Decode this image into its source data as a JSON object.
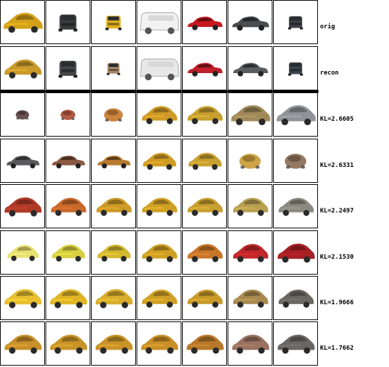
{
  "rows": [
    {
      "label": "orig",
      "cars": [
        {
          "color": "#d4a21a",
          "kind": "hatch-side",
          "scale": 1.0
        },
        {
          "color": "#3a3c40",
          "kind": "front",
          "scale": 0.7
        },
        {
          "color": "#e0b020",
          "kind": "front",
          "scale": 0.6
        },
        {
          "color": "#f2f2f2",
          "kind": "van-side",
          "scale": 1.0
        },
        {
          "color": "#c81820",
          "kind": "sedan-side",
          "scale": 0.9
        },
        {
          "color": "#4a4c50",
          "kind": "sedan-side",
          "scale": 0.95
        },
        {
          "color": "#3c4046",
          "kind": "front",
          "scale": 0.55
        }
      ]
    },
    {
      "label": "recon",
      "cars": [
        {
          "color": "#c99a2a",
          "kind": "hatch-side",
          "scale": 0.95
        },
        {
          "color": "#44464a",
          "kind": "front",
          "scale": 0.7
        },
        {
          "color": "#a8886a",
          "kind": "front",
          "scale": 0.5
        },
        {
          "color": "#e8e8e8",
          "kind": "van-side",
          "scale": 1.0
        },
        {
          "color": "#c0202a",
          "kind": "sedan-side",
          "scale": 0.9
        },
        {
          "color": "#5a5c60",
          "kind": "sedan-side",
          "scale": 0.9
        },
        {
          "color": "#3c4450",
          "kind": "front",
          "scale": 0.55
        }
      ]
    },
    {
      "label": "KL=2.6605",
      "cars": [
        {
          "color": "#5a4040",
          "kind": "blob",
          "scale": 0.5
        },
        {
          "color": "#a84a32",
          "kind": "blob",
          "scale": 0.55
        },
        {
          "color": "#c6782a",
          "kind": "blob",
          "scale": 0.7
        },
        {
          "color": "#d09a28",
          "kind": "hatch-side",
          "scale": 0.9
        },
        {
          "color": "#c8a030",
          "kind": "hatch-side",
          "scale": 0.9
        },
        {
          "color": "#a08a5a",
          "kind": "hatch-side",
          "scale": 1.0
        },
        {
          "color": "#909498",
          "kind": "hatch-side",
          "scale": 1.0
        }
      ]
    },
    {
      "label": "KL=2.6331",
      "cars": [
        {
          "color": "#5a5a5c",
          "kind": "sedan-side",
          "scale": 0.85
        },
        {
          "color": "#8a5a40",
          "kind": "sedan-side",
          "scale": 0.85
        },
        {
          "color": "#b87a30",
          "kind": "sedan-side",
          "scale": 0.85
        },
        {
          "color": "#d09c24",
          "kind": "hatch-side",
          "scale": 0.85
        },
        {
          "color": "#c8a030",
          "kind": "hatch-side",
          "scale": 0.85
        },
        {
          "color": "#c89a34",
          "kind": "blob",
          "scale": 0.8
        },
        {
          "color": "#8a6a50",
          "kind": "blob",
          "scale": 0.8
        }
      ]
    },
    {
      "label": "KL=2.2497",
      "cars": [
        {
          "color": "#b03a28",
          "kind": "hatch-side",
          "scale": 0.95
        },
        {
          "color": "#c8682a",
          "kind": "hatch-side",
          "scale": 0.9
        },
        {
          "color": "#cc9a26",
          "kind": "hatch-side",
          "scale": 0.9
        },
        {
          "color": "#d0a026",
          "kind": "hatch-side",
          "scale": 0.9
        },
        {
          "color": "#c8a030",
          "kind": "hatch-side",
          "scale": 0.9
        },
        {
          "color": "#b8a050",
          "kind": "hatch-side",
          "scale": 0.9
        },
        {
          "color": "#8a8a80",
          "kind": "hatch-side",
          "scale": 0.9
        }
      ]
    },
    {
      "label": "KL=2.1530",
      "cars": [
        {
          "color": "#e8e070",
          "kind": "hatch-side",
          "scale": 0.8
        },
        {
          "color": "#d8d040",
          "kind": "hatch-side",
          "scale": 0.85
        },
        {
          "color": "#d4b830",
          "kind": "hatch-side",
          "scale": 0.85
        },
        {
          "color": "#d0a024",
          "kind": "hatch-side",
          "scale": 0.9
        },
        {
          "color": "#c8762a",
          "kind": "hatch-side",
          "scale": 0.9
        },
        {
          "color": "#c0282a",
          "kind": "hatch-side",
          "scale": 0.9
        },
        {
          "color": "#a82024",
          "kind": "hatch-side",
          "scale": 0.95
        }
      ]
    },
    {
      "label": "KL=1.9666",
      "cars": [
        {
          "color": "#e8c030",
          "kind": "hatch-side",
          "scale": 0.95
        },
        {
          "color": "#e0b628",
          "kind": "hatch-side",
          "scale": 0.95
        },
        {
          "color": "#d8ae2c",
          "kind": "hatch-side",
          "scale": 0.95
        },
        {
          "color": "#d0a026",
          "kind": "hatch-side",
          "scale": 0.9
        },
        {
          "color": "#c89a2a",
          "kind": "hatch-side",
          "scale": 0.9
        },
        {
          "color": "#a88a50",
          "kind": "hatch-side",
          "scale": 0.9
        },
        {
          "color": "#6a6660",
          "kind": "hatch-side",
          "scale": 0.9
        }
      ]
    },
    {
      "label": "KL=1.7662",
      "cars": [
        {
          "color": "#c8902a",
          "kind": "hatch-side",
          "scale": 0.95
        },
        {
          "color": "#c89428",
          "kind": "hatch-side",
          "scale": 0.95
        },
        {
          "color": "#c89428",
          "kind": "hatch-side",
          "scale": 0.95
        },
        {
          "color": "#c89026",
          "kind": "hatch-side",
          "scale": 0.95
        },
        {
          "color": "#b8782a",
          "kind": "hatch-side",
          "scale": 0.95
        },
        {
          "color": "#9a7260",
          "kind": "hatch-side",
          "scale": 0.95
        },
        {
          "color": "#6a6664",
          "kind": "hatch-side",
          "scale": 0.95
        }
      ]
    }
  ]
}
